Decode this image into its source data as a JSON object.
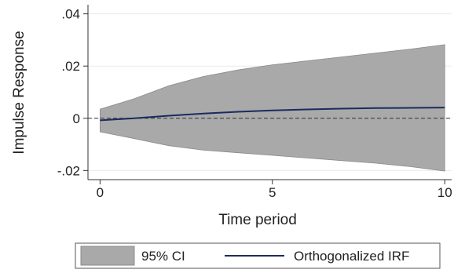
{
  "chart_data": {
    "type": "line",
    "xlabel": "Time period",
    "ylabel": "Impulse Response",
    "xlim": [
      -0.35,
      10.2
    ],
    "ylim": [
      -0.0235,
      0.0435
    ],
    "x_ticks": [
      0,
      5,
      10
    ],
    "x_tick_labels": [
      "0",
      "5",
      "10"
    ],
    "y_ticks": [
      -0.02,
      0,
      0.02,
      0.04
    ],
    "y_tick_labels": [
      "-.02",
      "0",
      ".02",
      ".04"
    ],
    "grid": "horizontal",
    "reference_line_y": 0,
    "legend_position": "bottom",
    "series": [
      {
        "name": "95% CI",
        "kind": "band",
        "color": "#a9a9a9",
        "x": [
          0,
          1,
          2,
          3,
          4,
          5,
          6,
          7,
          8,
          9,
          10
        ],
        "upper": [
          0.0035,
          0.0075,
          0.0125,
          0.016,
          0.0185,
          0.0205,
          0.022,
          0.0235,
          0.025,
          0.0265,
          0.0282
        ],
        "lower": [
          -0.0052,
          -0.0078,
          -0.0105,
          -0.0122,
          -0.0132,
          -0.0142,
          -0.0152,
          -0.0162,
          -0.0172,
          -0.0185,
          -0.0202
        ]
      },
      {
        "name": "Orthogonalized IRF",
        "kind": "line",
        "color": "#1a2b5e",
        "x": [
          0,
          1,
          2,
          3,
          4,
          5,
          6,
          7,
          8,
          9,
          10
        ],
        "values": [
          -0.0008,
          0.0,
          0.001,
          0.0018,
          0.0025,
          0.003,
          0.0034,
          0.0037,
          0.0039,
          0.004,
          0.0041
        ]
      }
    ]
  }
}
